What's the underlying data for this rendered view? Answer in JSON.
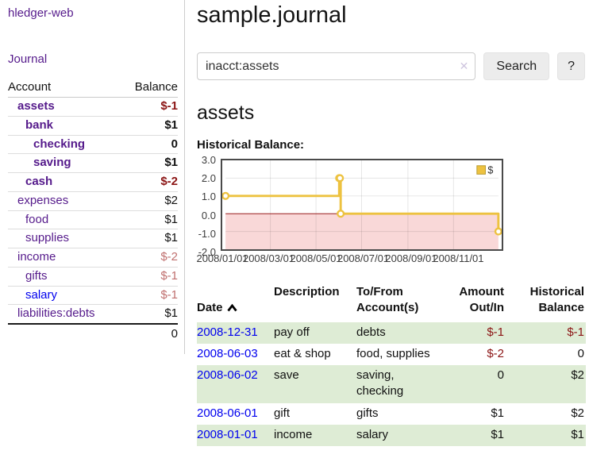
{
  "app": {
    "brand": "hledger-web",
    "nav_journal": "Journal",
    "title": "sample.journal"
  },
  "search": {
    "value": "inacct:assets",
    "clear_icon": "✕",
    "button_label": "Search",
    "help_label": "?"
  },
  "sidebar": {
    "headers": {
      "account": "Account",
      "balance": "Balance"
    },
    "accounts": [
      {
        "name": "assets",
        "depth": 1,
        "bold": true,
        "balance": "$-1",
        "neg": "strong"
      },
      {
        "name": "bank",
        "depth": 2,
        "bold": true,
        "balance": "$1"
      },
      {
        "name": "checking",
        "depth": 3,
        "bold": true,
        "balance": "0"
      },
      {
        "name": "saving",
        "depth": 3,
        "bold": true,
        "balance": "$1"
      },
      {
        "name": "cash",
        "depth": 2,
        "bold": true,
        "balance": "$-2",
        "neg": "strong"
      },
      {
        "name": "expenses",
        "depth": 1,
        "bold": false,
        "balance": "$2"
      },
      {
        "name": "food",
        "depth": 2,
        "bold": false,
        "balance": "$1"
      },
      {
        "name": "supplies",
        "depth": 2,
        "bold": false,
        "balance": "$1"
      },
      {
        "name": "income",
        "depth": 1,
        "bold": false,
        "balance": "$-2",
        "neg": "light"
      },
      {
        "name": "gifts",
        "depth": 2,
        "bold": false,
        "balance": "$-1",
        "neg": "light"
      },
      {
        "name": "salary",
        "depth": 2,
        "bold": false,
        "balance": "$-1",
        "neg": "light",
        "link_color": "blue"
      },
      {
        "name": "liabilities:debts",
        "depth": 1,
        "bold": false,
        "balance": "$1"
      }
    ],
    "total": "0"
  },
  "main": {
    "heading": "assets",
    "chart_label": "Historical Balance:"
  },
  "chart_data": {
    "type": "line",
    "step": true,
    "title": "Historical Balance:",
    "series": [
      {
        "name": "$",
        "color": "#edc240",
        "points": [
          {
            "date": "2008-01-01",
            "value": 1
          },
          {
            "date": "2008-06-01",
            "value": 2
          },
          {
            "date": "2008-06-02",
            "value": 2
          },
          {
            "date": "2008-06-03",
            "value": 0
          },
          {
            "date": "2008-12-31",
            "value": -1
          }
        ]
      }
    ],
    "x_range": [
      "2008-01-01",
      "2008-12-31"
    ],
    "x_ticks": [
      "2008/01/01",
      "2008/03/01",
      "2008/05/01",
      "2008/07/01",
      "2008/09/01",
      "2008/11/01"
    ],
    "y_ticks": [
      3,
      2,
      1,
      0,
      -1,
      -2
    ],
    "ylim": [
      -2,
      3
    ],
    "grid": true,
    "legend_position": "top-right",
    "negative_region_color": "#f9d8d8",
    "zero_line_color": "#8b0000"
  },
  "table": {
    "headers": [
      "Date",
      "Description",
      "To/From\nAccount(s)",
      "Amount\nOut/In",
      "Historical\nBalance"
    ],
    "sort_icon": "chevron-up",
    "rows": [
      {
        "date": "2008-12-31",
        "description": "pay off",
        "accounts": "debts",
        "amount": "$-1",
        "amount_neg": true,
        "balance": "$-1",
        "balance_neg": true
      },
      {
        "date": "2008-06-03",
        "description": "eat & shop",
        "accounts": "food, supplies",
        "amount": "$-2",
        "amount_neg": true,
        "balance": "0",
        "balance_neg": false
      },
      {
        "date": "2008-06-02",
        "description": "save",
        "accounts": "saving,\nchecking",
        "amount": "0",
        "amount_neg": false,
        "balance": "$2",
        "balance_neg": false
      },
      {
        "date": "2008-06-01",
        "description": "gift",
        "accounts": "gifts",
        "amount": "$1",
        "amount_neg": false,
        "balance": "$2",
        "balance_neg": false
      },
      {
        "date": "2008-01-01",
        "description": "income",
        "accounts": "salary",
        "amount": "$1",
        "amount_neg": false,
        "balance": "$1",
        "balance_neg": false
      }
    ]
  },
  "colors": {
    "purple": "#551a8b",
    "blue": "#0000ee",
    "negStrong": "#8b1414",
    "negLight": "#c0706f",
    "stripe": "#deecd5",
    "seriesYellow": "#edc240",
    "pinkRegion": "#f9d8d8",
    "zeroLine": "#8b0000"
  }
}
